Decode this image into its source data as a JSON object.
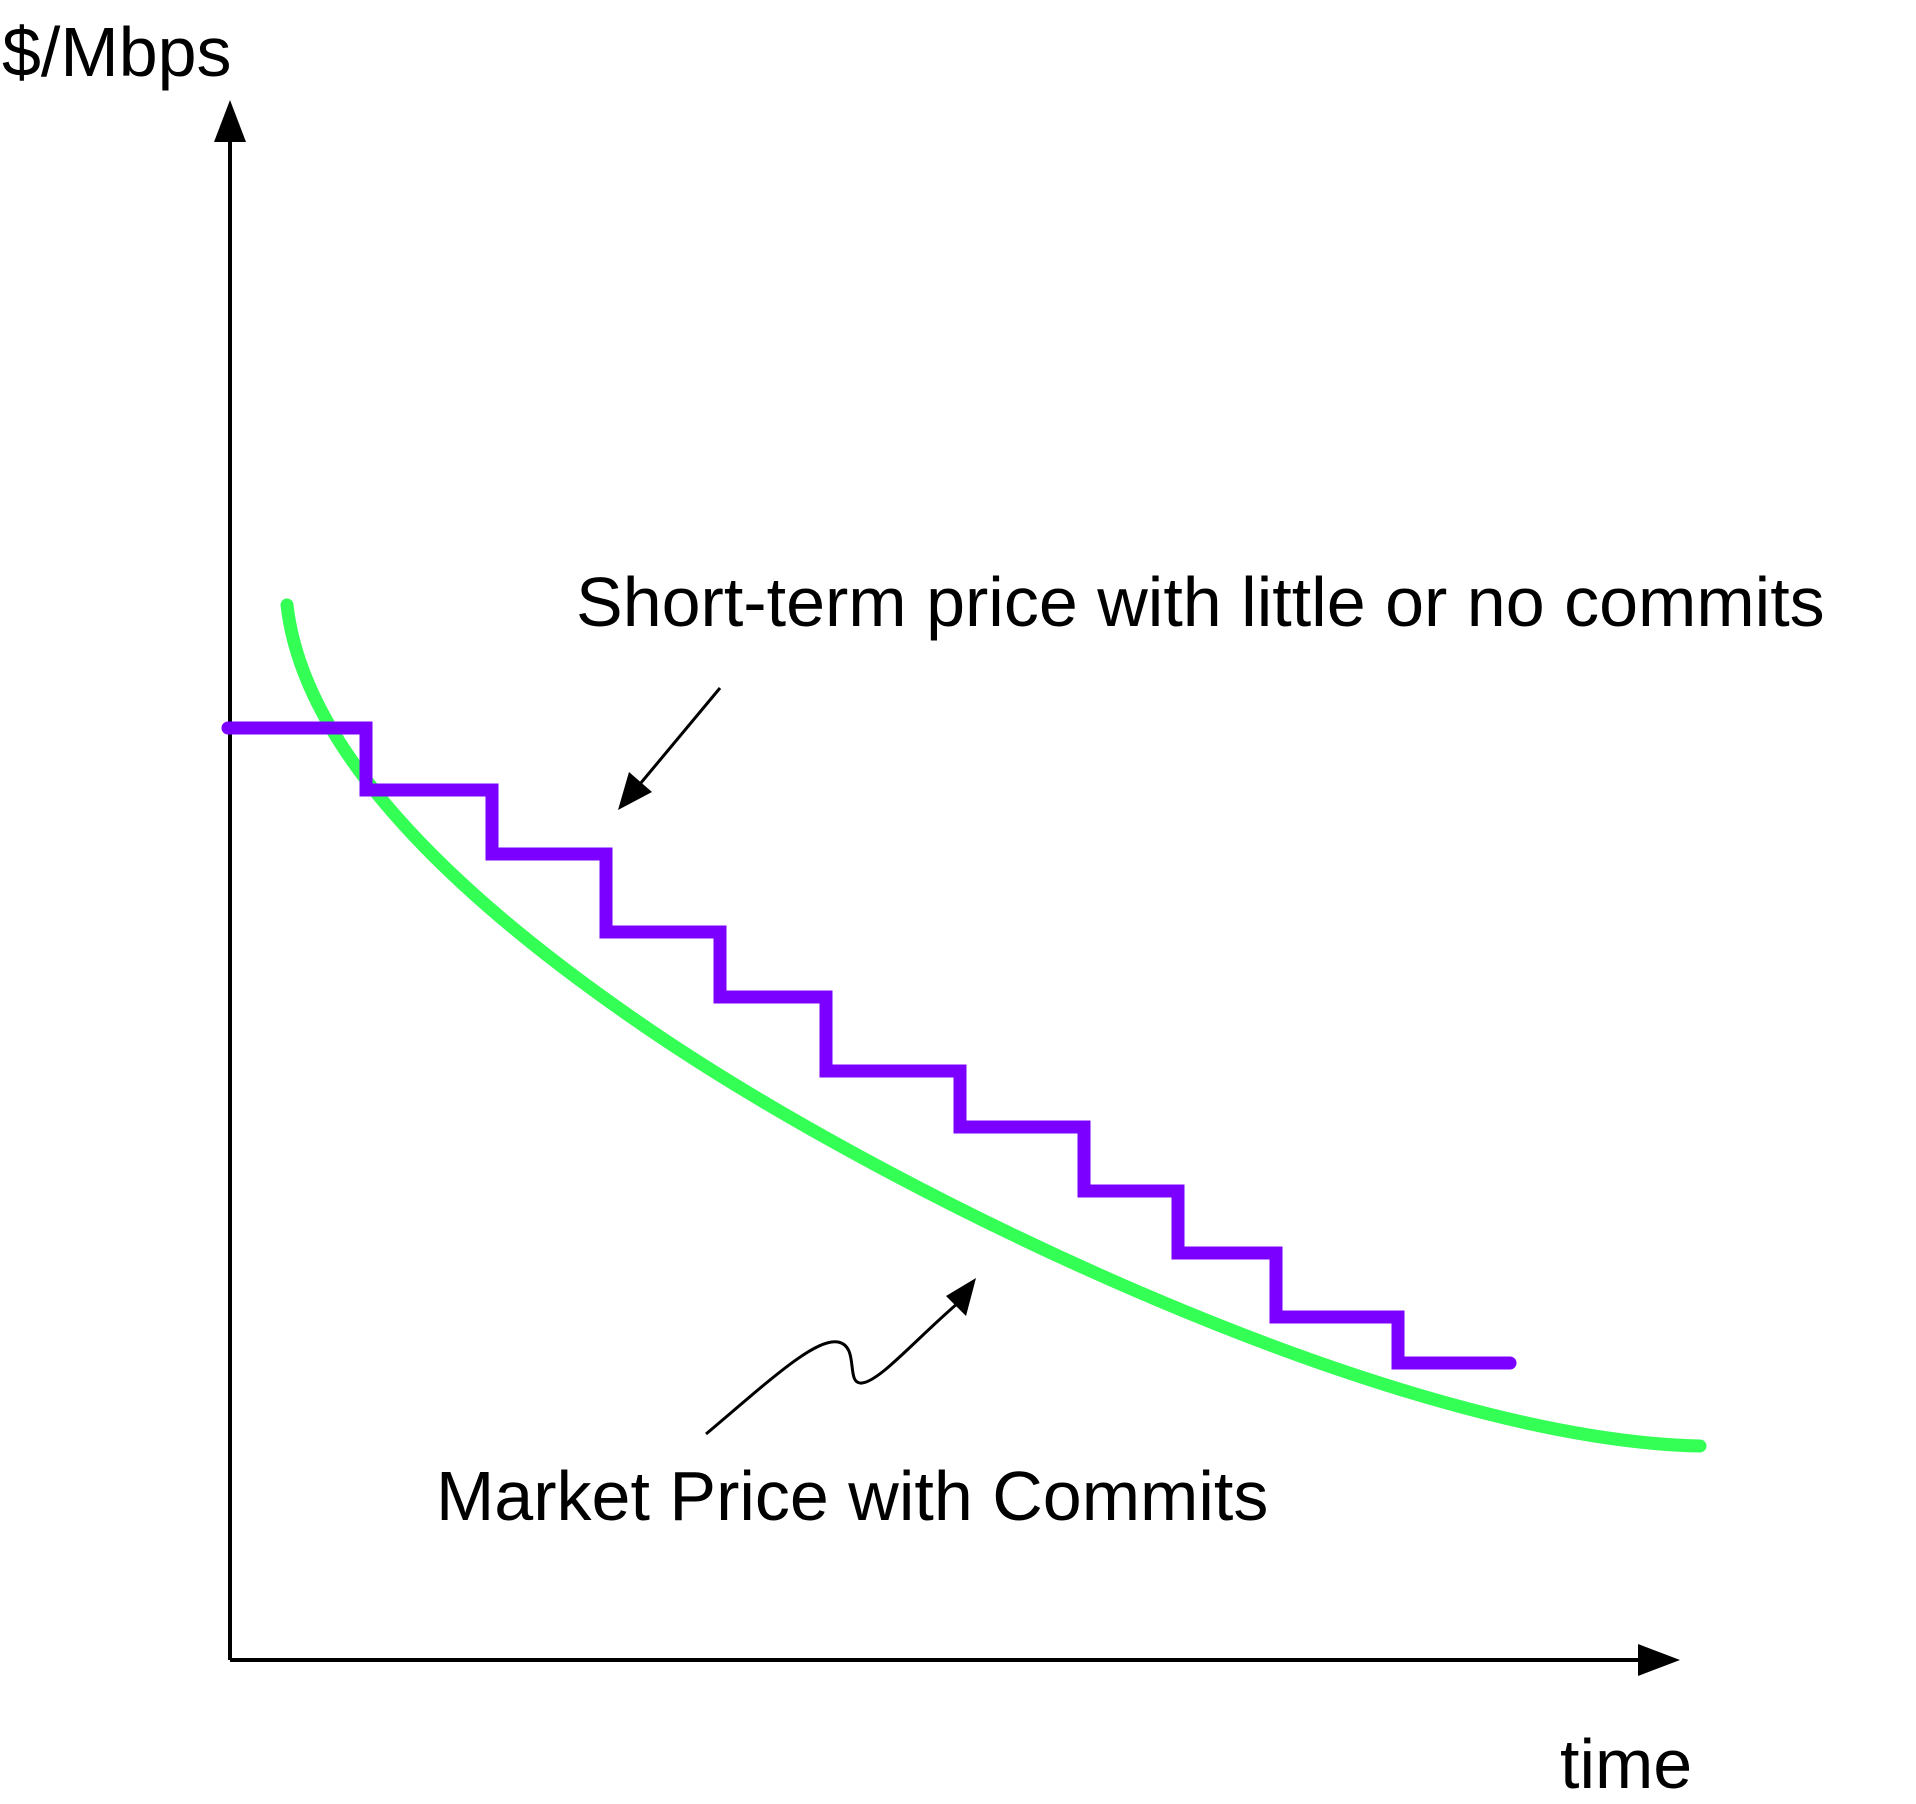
{
  "chart_data": {
    "type": "line",
    "ylabel": "$/Mbps",
    "xlabel": "time",
    "annotations": [
      "Short-term price with little or no commits",
      "Market Price with Commits"
    ],
    "colors": {
      "short_term_price": "#7b00ff",
      "market_price": "#33ff55",
      "axes": "#000000"
    }
  }
}
